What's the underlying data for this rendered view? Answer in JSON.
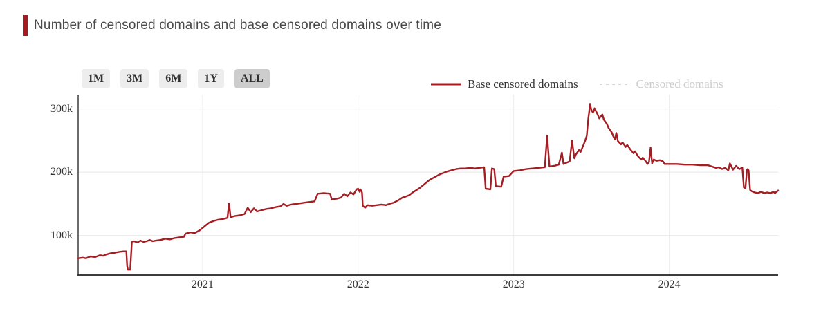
{
  "header": {
    "title": "Number of censored domains and base censored domains over time",
    "accent_color": "#a31d23"
  },
  "controls": {
    "range_buttons": [
      {
        "label": "1M",
        "selected": false
      },
      {
        "label": "3M",
        "selected": false
      },
      {
        "label": "6M",
        "selected": false
      },
      {
        "label": "1Y",
        "selected": false
      },
      {
        "label": "ALL",
        "selected": true
      }
    ]
  },
  "chart_data": {
    "type": "line",
    "title": "Number of censored domains and base censored domains over time",
    "xlabel": "",
    "ylabel": "",
    "y_unit": "thousands of domains",
    "xlim": [
      2020.2,
      2024.7
    ],
    "ylim": [
      37.5,
      322.5
    ],
    "grid": true,
    "legend_position": "top-right",
    "xticks": [
      {
        "value": 2021,
        "label": "2021"
      },
      {
        "value": 2022,
        "label": "2022"
      },
      {
        "value": 2023,
        "label": "2023"
      },
      {
        "value": 2024,
        "label": "2024"
      }
    ],
    "yticks": [
      {
        "value": 100,
        "label": "100k"
      },
      {
        "value": 200,
        "label": "200k"
      },
      {
        "value": 300,
        "label": "300k"
      }
    ],
    "series": [
      {
        "name": "Base censored domains",
        "color": "#a31d23",
        "dash": "solid",
        "visible": true,
        "points": [
          [
            2020.2,
            64
          ],
          [
            2020.23,
            65
          ],
          [
            2020.25,
            64
          ],
          [
            2020.28,
            67
          ],
          [
            2020.31,
            66
          ],
          [
            2020.34,
            69
          ],
          [
            2020.36,
            68
          ],
          [
            2020.38,
            70
          ],
          [
            2020.41,
            72
          ],
          [
            2020.44,
            73
          ],
          [
            2020.46,
            74
          ],
          [
            2020.49,
            75
          ],
          [
            2020.51,
            75
          ],
          [
            2020.515,
            52
          ],
          [
            2020.52,
            46
          ],
          [
            2020.535,
            46
          ],
          [
            2020.545,
            90
          ],
          [
            2020.56,
            91
          ],
          [
            2020.58,
            89
          ],
          [
            2020.6,
            92
          ],
          [
            2020.62,
            90
          ],
          [
            2020.64,
            91
          ],
          [
            2020.66,
            93
          ],
          [
            2020.68,
            91
          ],
          [
            2020.7,
            92
          ],
          [
            2020.73,
            93
          ],
          [
            2020.76,
            95
          ],
          [
            2020.79,
            94
          ],
          [
            2020.82,
            96
          ],
          [
            2020.85,
            97
          ],
          [
            2020.88,
            98
          ],
          [
            2020.89,
            103
          ],
          [
            2020.92,
            105
          ],
          [
            2020.95,
            104
          ],
          [
            2020.98,
            108
          ],
          [
            2021.0,
            112
          ],
          [
            2021.02,
            116
          ],
          [
            2021.04,
            120
          ],
          [
            2021.07,
            123
          ],
          [
            2021.1,
            125
          ],
          [
            2021.13,
            126
          ],
          [
            2021.16,
            128
          ],
          [
            2021.17,
            151
          ],
          [
            2021.18,
            129
          ],
          [
            2021.21,
            131
          ],
          [
            2021.24,
            132
          ],
          [
            2021.27,
            134
          ],
          [
            2021.29,
            144
          ],
          [
            2021.31,
            137
          ],
          [
            2021.33,
            143
          ],
          [
            2021.35,
            138
          ],
          [
            2021.38,
            140
          ],
          [
            2021.41,
            142
          ],
          [
            2021.44,
            143
          ],
          [
            2021.47,
            145
          ],
          [
            2021.5,
            146
          ],
          [
            2021.52,
            150
          ],
          [
            2021.54,
            147
          ],
          [
            2021.57,
            149
          ],
          [
            2021.6,
            150
          ],
          [
            2021.63,
            151
          ],
          [
            2021.66,
            152
          ],
          [
            2021.69,
            153
          ],
          [
            2021.72,
            154
          ],
          [
            2021.74,
            166
          ],
          [
            2021.78,
            167
          ],
          [
            2021.82,
            166
          ],
          [
            2021.83,
            157
          ],
          [
            2021.86,
            158
          ],
          [
            2021.89,
            160
          ],
          [
            2021.91,
            166
          ],
          [
            2021.93,
            162
          ],
          [
            2021.95,
            168
          ],
          [
            2021.97,
            165
          ],
          [
            2021.99,
            173
          ],
          [
            2022.0,
            174
          ],
          [
            2022.01,
            169
          ],
          [
            2022.015,
            173
          ],
          [
            2022.025,
            168
          ],
          [
            2022.03,
            147
          ],
          [
            2022.045,
            144
          ],
          [
            2022.06,
            148
          ],
          [
            2022.09,
            147
          ],
          [
            2022.12,
            148
          ],
          [
            2022.15,
            149
          ],
          [
            2022.18,
            148
          ],
          [
            2022.2,
            150
          ],
          [
            2022.23,
            152
          ],
          [
            2022.26,
            156
          ],
          [
            2022.285,
            160
          ],
          [
            2022.3,
            161
          ],
          [
            2022.33,
            164
          ],
          [
            2022.35,
            168
          ],
          [
            2022.37,
            171
          ],
          [
            2022.4,
            176
          ],
          [
            2022.43,
            182
          ],
          [
            2022.46,
            188
          ],
          [
            2022.49,
            192
          ],
          [
            2022.52,
            196
          ],
          [
            2022.54,
            198
          ],
          [
            2022.57,
            201
          ],
          [
            2022.6,
            203
          ],
          [
            2022.63,
            205
          ],
          [
            2022.66,
            206
          ],
          [
            2022.69,
            206
          ],
          [
            2022.72,
            207
          ],
          [
            2022.75,
            206
          ],
          [
            2022.78,
            207
          ],
          [
            2022.81,
            208
          ],
          [
            2022.82,
            174
          ],
          [
            2022.85,
            173
          ],
          [
            2022.86,
            206
          ],
          [
            2022.875,
            205
          ],
          [
            2022.885,
            178
          ],
          [
            2022.92,
            177
          ],
          [
            2022.935,
            193
          ],
          [
            2022.97,
            194
          ],
          [
            2023.0,
            202
          ],
          [
            2023.04,
            203
          ],
          [
            2023.08,
            205
          ],
          [
            2023.12,
            206
          ],
          [
            2023.16,
            207
          ],
          [
            2023.2,
            208
          ],
          [
            2023.215,
            258
          ],
          [
            2023.23,
            209
          ],
          [
            2023.26,
            210
          ],
          [
            2023.29,
            212
          ],
          [
            2023.31,
            231
          ],
          [
            2023.32,
            213
          ],
          [
            2023.34,
            215
          ],
          [
            2023.36,
            217
          ],
          [
            2023.375,
            250
          ],
          [
            2023.39,
            222
          ],
          [
            2023.4,
            228
          ],
          [
            2023.42,
            235
          ],
          [
            2023.43,
            232
          ],
          [
            2023.45,
            244
          ],
          [
            2023.46,
            250
          ],
          [
            2023.47,
            258
          ],
          [
            2023.475,
            272
          ],
          [
            2023.48,
            285
          ],
          [
            2023.485,
            295
          ],
          [
            2023.49,
            308
          ],
          [
            2023.5,
            298
          ],
          [
            2023.51,
            294
          ],
          [
            2023.52,
            301
          ],
          [
            2023.54,
            291
          ],
          [
            2023.55,
            285
          ],
          [
            2023.57,
            291
          ],
          [
            2023.58,
            283
          ],
          [
            2023.6,
            276
          ],
          [
            2023.61,
            270
          ],
          [
            2023.63,
            263
          ],
          [
            2023.64,
            257
          ],
          [
            2023.65,
            252
          ],
          [
            2023.66,
            262
          ],
          [
            2023.67,
            249
          ],
          [
            2023.69,
            244
          ],
          [
            2023.7,
            247
          ],
          [
            2023.72,
            240
          ],
          [
            2023.73,
            243
          ],
          [
            2023.75,
            236
          ],
          [
            2023.77,
            230
          ],
          [
            2023.78,
            233
          ],
          [
            2023.8,
            225
          ],
          [
            2023.82,
            220
          ],
          [
            2023.83,
            223
          ],
          [
            2023.85,
            217
          ],
          [
            2023.86,
            213
          ],
          [
            2023.87,
            216
          ],
          [
            2023.88,
            239
          ],
          [
            2023.89,
            214
          ],
          [
            2023.9,
            220
          ],
          [
            2023.92,
            218
          ],
          [
            2023.94,
            219
          ],
          [
            2023.96,
            217
          ],
          [
            2023.97,
            213
          ],
          [
            2024.0,
            213
          ],
          [
            2024.05,
            213
          ],
          [
            2024.1,
            212
          ],
          [
            2024.15,
            212
          ],
          [
            2024.2,
            211
          ],
          [
            2024.25,
            211
          ],
          [
            2024.3,
            207
          ],
          [
            2024.32,
            208
          ],
          [
            2024.34,
            205
          ],
          [
            2024.36,
            207
          ],
          [
            2024.38,
            203
          ],
          [
            2024.39,
            214
          ],
          [
            2024.41,
            204
          ],
          [
            2024.43,
            210
          ],
          [
            2024.45,
            205
          ],
          [
            2024.47,
            207
          ],
          [
            2024.48,
            176
          ],
          [
            2024.49,
            175
          ],
          [
            2024.5,
            204
          ],
          [
            2024.505,
            205
          ],
          [
            2024.51,
            203
          ],
          [
            2024.52,
            172
          ],
          [
            2024.53,
            170
          ],
          [
            2024.55,
            168
          ],
          [
            2024.57,
            167
          ],
          [
            2024.59,
            169
          ],
          [
            2024.61,
            167
          ],
          [
            2024.63,
            168
          ],
          [
            2024.65,
            167
          ],
          [
            2024.67,
            169
          ],
          [
            2024.68,
            167
          ],
          [
            2024.7,
            171
          ]
        ]
      },
      {
        "name": "Censored domains",
        "color": "#d6d6d6",
        "dash": "dashed",
        "visible": false,
        "points": []
      }
    ]
  },
  "colors": {
    "grid_line": "#e7e7e7",
    "grid_line_vertical": "#ededed",
    "axis_line": "#3c3c3c",
    "tick_text": "#333333",
    "legend_disabled": "#cccccc"
  }
}
